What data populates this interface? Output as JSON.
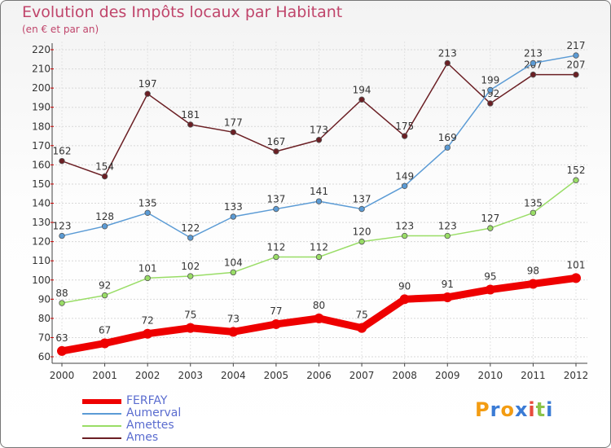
{
  "header": {
    "title": "Evolution des Impôts locaux par Habitant",
    "subtitle": "(en € et par an)"
  },
  "logo": {
    "letters": [
      "P",
      "r",
      "o",
      "x",
      "i",
      "t",
      "i"
    ],
    "colors": [
      "#f39c12",
      "#3a7bd5",
      "#f39c12",
      "#3a7bd5",
      "#e74c3c",
      "#8bc34a",
      "#3a7bd5"
    ]
  },
  "chart_data": {
    "type": "line",
    "x": [
      "2000",
      "2001",
      "2002",
      "2003",
      "2004",
      "2005",
      "2006",
      "2007",
      "2008",
      "2009",
      "2010",
      "2011",
      "2012"
    ],
    "ylim": [
      60,
      220
    ],
    "yticks": [
      60,
      70,
      80,
      90,
      100,
      110,
      120,
      130,
      140,
      150,
      160,
      170,
      180,
      190,
      200,
      210,
      220
    ],
    "grid": true,
    "legend_position": "bottom-left",
    "series": [
      {
        "name": "FERFAY",
        "color": "#ee0000",
        "values": [
          63,
          67,
          72,
          75,
          73,
          77,
          80,
          75,
          90,
          91,
          95,
          98,
          101
        ]
      },
      {
        "name": "Aumerval",
        "color": "#5b9bd5",
        "values": [
          123,
          128,
          135,
          122,
          133,
          137,
          141,
          137,
          149,
          169,
          199,
          213,
          217
        ]
      },
      {
        "name": "Amettes",
        "color": "#99dd66",
        "values": [
          88,
          92,
          101,
          102,
          104,
          112,
          112,
          120,
          123,
          123,
          127,
          135,
          152
        ]
      },
      {
        "name": "Ames",
        "color": "#6b1f24",
        "values": [
          162,
          154,
          197,
          181,
          177,
          167,
          173,
          194,
          175,
          213,
          192,
          207,
          207
        ]
      }
    ]
  }
}
